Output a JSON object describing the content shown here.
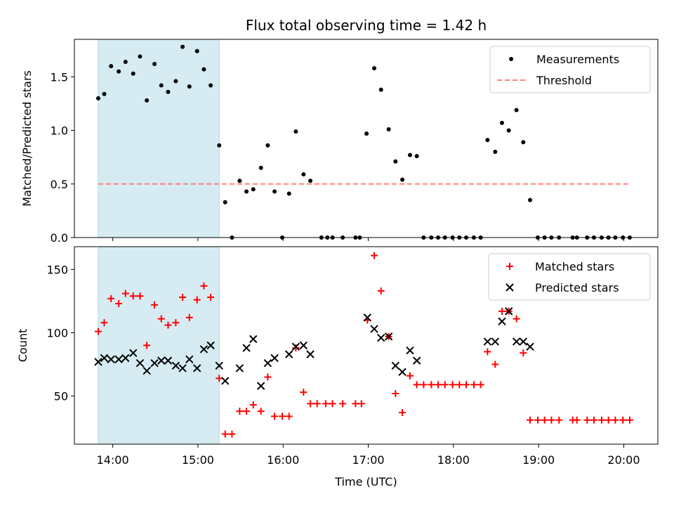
{
  "title": "Flux total observing time = 1.42 h",
  "colors": {
    "measurements": "#000000",
    "threshold": "#ff7f7f",
    "matched": "#ff0000",
    "predicted": "#000000",
    "shade": "#add8e6"
  },
  "chart_data": [
    {
      "type": "scatter",
      "ylabel": "Matched/Predicted stars",
      "xlim": [
        13.55,
        20.4
      ],
      "ylim": [
        0,
        1.85
      ],
      "yticks": [
        0.0,
        0.5,
        1.0,
        1.5
      ],
      "ytick_labels": [
        "0.0",
        "0.5",
        "1.0",
        "1.5"
      ],
      "xticks": [
        14,
        15,
        16,
        17,
        18,
        19,
        20
      ],
      "shaded_span": [
        13.83,
        15.25
      ],
      "legend": {
        "position": "top-right",
        "entries": [
          "Measurements",
          "Threshold"
        ]
      },
      "threshold": {
        "name": "Threshold",
        "y": 0.5,
        "x": [
          13.83,
          20.08
        ]
      },
      "series": [
        {
          "name": "Measurements",
          "x": [
            13.83,
            13.9,
            13.98,
            14.07,
            14.15,
            14.24,
            14.32,
            14.4,
            14.49,
            14.57,
            14.65,
            14.74,
            14.82,
            14.9,
            14.99,
            15.07,
            15.15,
            15.25,
            15.32,
            15.4,
            15.49,
            15.57,
            15.65,
            15.74,
            15.82,
            15.9,
            15.99,
            16.07,
            16.15,
            16.24,
            16.32,
            16.45,
            16.52,
            16.58,
            16.7,
            16.85,
            16.9,
            16.98,
            17.07,
            17.15,
            17.24,
            17.32,
            17.4,
            17.49,
            17.57,
            17.65,
            17.74,
            17.82,
            17.9,
            17.99,
            18.07,
            18.15,
            18.24,
            18.32,
            18.4,
            18.49,
            18.57,
            18.65,
            18.74,
            18.82,
            18.9,
            18.99,
            19.07,
            19.15,
            19.24,
            19.4,
            19.45,
            19.57,
            19.65,
            19.74,
            19.82,
            19.9,
            19.99,
            20.07
          ],
          "y": [
            1.3,
            1.34,
            1.6,
            1.55,
            1.64,
            1.53,
            1.69,
            1.28,
            1.62,
            1.42,
            1.36,
            1.46,
            1.78,
            1.41,
            1.74,
            1.57,
            1.42,
            0.86,
            0.33,
            0.0,
            0.53,
            0.43,
            0.45,
            0.65,
            0.86,
            0.43,
            0.0,
            0.41,
            0.99,
            0.59,
            0.53,
            0.0,
            0.0,
            0.0,
            0.0,
            0.0,
            0.0,
            0.97,
            1.58,
            1.38,
            1.01,
            0.71,
            0.54,
            0.77,
            0.76,
            0.0,
            0.0,
            0.0,
            0.0,
            0.0,
            0.0,
            0.0,
            0.0,
            0.0,
            0.91,
            0.8,
            1.07,
            1.0,
            1.19,
            0.89,
            0.35,
            0.0,
            0.0,
            0.0,
            0.0,
            0.0,
            0.0,
            0.0,
            0.0,
            0.0,
            0.0,
            0.0,
            0.0,
            0.0
          ]
        }
      ]
    },
    {
      "type": "scatter",
      "xlabel": "Time (UTC)",
      "ylabel": "Count",
      "xlim": [
        13.55,
        20.4
      ],
      "ylim": [
        12,
        168
      ],
      "yticks": [
        50,
        100,
        150
      ],
      "ytick_labels": [
        "50",
        "100",
        "150"
      ],
      "xticks": [
        14,
        15,
        16,
        17,
        18,
        19,
        20
      ],
      "xtick_labels": [
        "14:00",
        "15:00",
        "16:00",
        "17:00",
        "18:00",
        "19:00",
        "20:00"
      ],
      "shaded_span": [
        13.83,
        15.25
      ],
      "legend": {
        "position": "top-right",
        "entries": [
          "Matched stars",
          "Predicted stars"
        ]
      },
      "series": [
        {
          "name": "Matched stars",
          "x": [
            13.83,
            13.9,
            13.98,
            14.07,
            14.15,
            14.24,
            14.32,
            14.4,
            14.49,
            14.57,
            14.65,
            14.74,
            14.82,
            14.9,
            14.99,
            15.07,
            15.15,
            15.25,
            15.32,
            15.4,
            15.49,
            15.57,
            15.65,
            15.74,
            15.82,
            15.9,
            15.99,
            16.07,
            16.15,
            16.24,
            16.32,
            16.4,
            16.5,
            16.58,
            16.7,
            16.85,
            16.92,
            16.99,
            17.07,
            17.15,
            17.24,
            17.32,
            17.4,
            17.49,
            17.57,
            17.65,
            17.74,
            17.82,
            17.9,
            17.99,
            18.07,
            18.15,
            18.24,
            18.32,
            18.4,
            18.49,
            18.57,
            18.65,
            18.74,
            18.82,
            18.9,
            18.99,
            19.07,
            19.15,
            19.24,
            19.4,
            19.45,
            19.57,
            19.65,
            19.74,
            19.82,
            19.9,
            19.99,
            20.07
          ],
          "y": [
            101,
            108,
            127,
            123,
            131,
            129,
            129,
            90,
            122,
            111,
            106,
            108,
            128,
            112,
            126,
            137,
            128,
            64,
            20,
            20,
            38,
            38,
            43,
            38,
            65,
            34,
            34,
            34,
            88,
            53,
            44,
            44,
            44,
            44,
            44,
            44,
            44,
            110,
            161,
            133,
            97,
            52,
            37,
            66,
            59,
            59,
            59,
            59,
            59,
            59,
            59,
            59,
            59,
            59,
            85,
            75,
            117,
            117,
            111,
            84,
            31,
            31,
            31,
            31,
            31,
            31,
            31,
            31,
            31,
            31,
            31,
            31,
            31,
            31
          ]
        },
        {
          "name": "Predicted stars",
          "x": [
            13.83,
            13.9,
            13.98,
            14.07,
            14.15,
            14.24,
            14.32,
            14.4,
            14.49,
            14.57,
            14.65,
            14.74,
            14.82,
            14.9,
            14.99,
            15.07,
            15.15,
            15.25,
            15.32,
            15.49,
            15.57,
            15.65,
            15.74,
            15.82,
            15.9,
            16.07,
            16.15,
            16.24,
            16.32,
            16.99,
            17.07,
            17.15,
            17.24,
            17.32,
            17.4,
            17.49,
            17.57,
            18.4,
            18.49,
            18.57,
            18.65,
            18.74,
            18.82,
            18.9
          ],
          "y": [
            77,
            80,
            79,
            79,
            80,
            84,
            76,
            70,
            76,
            78,
            78,
            74,
            72,
            79,
            72,
            87,
            90,
            74,
            62,
            72,
            88,
            95,
            58,
            76,
            80,
            83,
            89,
            90,
            83,
            112,
            103,
            96,
            97,
            74,
            69,
            86,
            78,
            93,
            93,
            109,
            117,
            93,
            93,
            89
          ]
        }
      ]
    }
  ]
}
